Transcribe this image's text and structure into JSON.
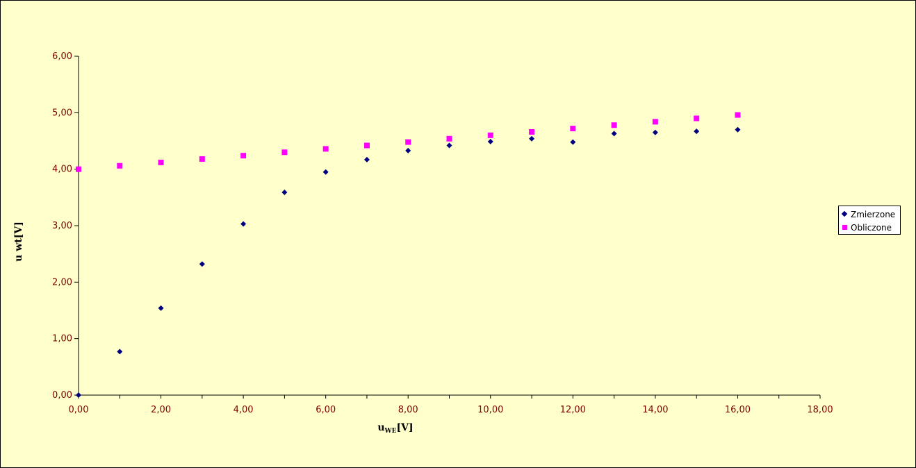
{
  "chart_data": {
    "type": "scatter",
    "title": "",
    "xlabel": "u",
    "xlabel_sub": "WE",
    "xlabel_unit": "[V]",
    "ylabel": "u wt[V]",
    "xlim": [
      0,
      18
    ],
    "ylim": [
      0,
      6
    ],
    "x_ticks": [
      "0,00",
      "2,00",
      "4,00",
      "6,00",
      "8,00",
      "10,00",
      "12,00",
      "14,00",
      "16,00",
      "18,00"
    ],
    "y_ticks": [
      "0,00",
      "1,00",
      "2,00",
      "3,00",
      "4,00",
      "5,00",
      "6,00"
    ],
    "grid": false,
    "legend_position": "right",
    "series": [
      {
        "name": "Zmierzone",
        "marker": "diamond",
        "color": "#000080",
        "x": [
          0,
          1,
          2,
          3,
          4,
          5,
          6,
          7,
          8,
          9,
          10,
          11,
          12,
          13,
          14,
          15,
          16
        ],
        "y": [
          0.0,
          0.77,
          1.54,
          2.32,
          3.03,
          3.59,
          3.95,
          4.17,
          4.33,
          4.42,
          4.49,
          4.54,
          4.48,
          4.63,
          4.65,
          4.67,
          4.7
        ]
      },
      {
        "name": "Obliczone",
        "marker": "square",
        "color": "#ff00ff",
        "x": [
          0,
          1,
          2,
          3,
          4,
          5,
          6,
          7,
          8,
          9,
          10,
          11,
          12,
          13,
          14,
          15,
          16
        ],
        "y": [
          4.0,
          4.06,
          4.12,
          4.18,
          4.24,
          4.3,
          4.36,
          4.42,
          4.48,
          4.54,
          4.6,
          4.66,
          4.72,
          4.78,
          4.84,
          4.9,
          4.96
        ]
      }
    ]
  },
  "colors": {
    "background": "#ffffcc",
    "axis": "#000000",
    "tick_label": "#800000"
  }
}
